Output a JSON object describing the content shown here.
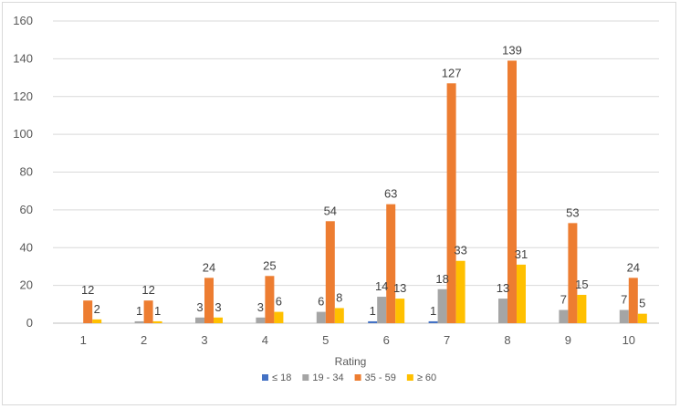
{
  "chart_data": {
    "type": "bar",
    "title": "",
    "xlabel": "Rating",
    "ylabel": "",
    "ylim": [
      0,
      160
    ],
    "yticks": [
      0,
      20,
      40,
      60,
      80,
      100,
      120,
      140,
      160
    ],
    "grid": true,
    "legend_position": "bottom",
    "categories": [
      "1",
      "2",
      "3",
      "4",
      "5",
      "6",
      "7",
      "8",
      "9",
      "10"
    ],
    "series": [
      {
        "name": "≤ 18",
        "color": "#4472C4",
        "values": [
          0,
          0,
          0,
          0,
          0,
          1,
          1,
          0,
          0,
          0
        ],
        "labels": [
          "",
          "",
          "",
          "",
          "",
          "1",
          "1",
          "",
          "",
          ""
        ]
      },
      {
        "name": "19 - 34",
        "color": "#A5A5A5",
        "values": [
          0,
          1,
          3,
          3,
          6,
          14,
          18,
          13,
          7,
          7
        ],
        "labels": [
          "",
          "1",
          "3",
          "3",
          "6",
          "14",
          "18",
          "13",
          "7",
          "7"
        ]
      },
      {
        "name": "35 - 59",
        "color": "#ED7D31",
        "values": [
          12,
          12,
          24,
          25,
          54,
          63,
          127,
          139,
          53,
          24
        ],
        "labels": [
          "12",
          "12",
          "24",
          "25",
          "54",
          "63",
          "127",
          "139",
          "53",
          "24"
        ]
      },
      {
        "name": "≥ 60",
        "color": "#FFC000",
        "values": [
          2,
          1,
          3,
          6,
          8,
          13,
          33,
          31,
          15,
          5
        ],
        "labels": [
          "2",
          "1",
          "3",
          "6",
          "8",
          "13",
          "33",
          "31",
          "15",
          "5"
        ]
      }
    ]
  }
}
